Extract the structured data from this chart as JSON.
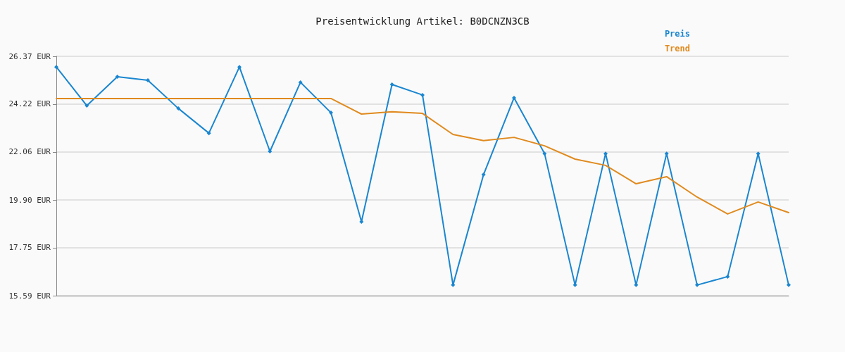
{
  "chart_data": {
    "type": "line",
    "title": "Preisentwicklung Artikel: B0DCNZN3CB",
    "categories": [
      null,
      null,
      null,
      null,
      null,
      null,
      null,
      null,
      null,
      null,
      null,
      null,
      null,
      null,
      null,
      null,
      null,
      null,
      null,
      null,
      null,
      null,
      null,
      null,
      null
    ],
    "series": [
      {
        "name": "Preis",
        "color": "#1a86d0",
        "marker": "diamond",
        "values": [
          25.89,
          24.15,
          25.45,
          25.29,
          24.02,
          22.91,
          25.89,
          22.09,
          25.2,
          23.83,
          18.92,
          25.1,
          24.63,
          16.07,
          21.04,
          24.5,
          21.99,
          16.07,
          21.99,
          16.07,
          21.99,
          16.07,
          16.45,
          21.99,
          16.07
        ]
      },
      {
        "name": "Trend",
        "color": "#e08a1e",
        "marker": "none",
        "values": [
          24.47,
          24.47,
          24.47,
          24.47,
          24.47,
          24.47,
          24.47,
          24.47,
          24.47,
          24.47,
          23.77,
          23.87,
          23.8,
          22.85,
          22.57,
          22.72,
          22.34,
          21.74,
          21.46,
          20.63,
          20.95,
          20.03,
          19.27,
          19.81,
          19.33
        ]
      }
    ],
    "ylim": [
      15.59,
      26.37
    ],
    "yticks": [
      {
        "value": 15.59,
        "label": "15.59 EUR"
      },
      {
        "value": 17.75,
        "label": "17.75 EUR"
      },
      {
        "value": 19.9,
        "label": "19.90 EUR"
      },
      {
        "value": 22.06,
        "label": "22.06 EUR"
      },
      {
        "value": 24.22,
        "label": "24.22 EUR"
      },
      {
        "value": 26.37,
        "label": "26.37 EUR"
      }
    ],
    "grid": "y",
    "legend": "top right",
    "line_style": "solid"
  }
}
